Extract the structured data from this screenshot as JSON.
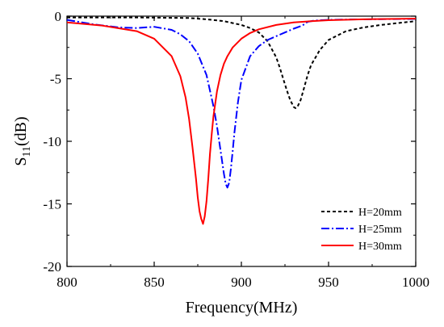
{
  "chart_data": {
    "type": "line",
    "xlabel": "Frequency(MHz)",
    "ylabel_main": "S",
    "ylabel_sub": "11",
    "ylabel_unit": "(dB)",
    "xlim": [
      800,
      1000
    ],
    "ylim": [
      -20,
      0
    ],
    "xticks": [
      800,
      850,
      900,
      950,
      1000
    ],
    "xtick_labels": [
      "800",
      "850",
      "900",
      "950",
      "1000"
    ],
    "yticks": [
      0,
      -5,
      -10,
      -15,
      -20
    ],
    "ytick_labels": [
      "0",
      "-5",
      "-10",
      "-15",
      "-20"
    ],
    "grid": false,
    "legend_position": "bottom-right",
    "series": [
      {
        "name": "H=20mm",
        "color": "#000000",
        "dash": "4,3",
        "x": [
          800,
          840,
          870,
          880,
          890,
          900,
          905,
          910,
          915,
          920,
          922,
          924,
          926,
          928,
          930,
          931,
          932,
          934,
          936,
          938,
          940,
          945,
          950,
          960,
          970,
          980,
          990,
          1000
        ],
        "y": [
          -0.1,
          -0.1,
          -0.15,
          -0.25,
          -0.4,
          -0.7,
          -0.95,
          -1.3,
          -2.0,
          -3.3,
          -4.1,
          -5.0,
          -5.9,
          -6.7,
          -7.25,
          -7.35,
          -7.3,
          -6.7,
          -5.7,
          -4.7,
          -3.9,
          -2.7,
          -1.9,
          -1.2,
          -0.9,
          -0.7,
          -0.55,
          -0.4
        ]
      },
      {
        "name": "H=25mm",
        "color": "#0000ff",
        "dash": "10,3,2,3",
        "x": [
          800,
          815,
          830,
          840,
          850,
          860,
          865,
          870,
          875,
          880,
          884,
          886,
          888,
          890,
          891,
          892,
          893,
          894,
          895,
          896,
          898,
          900,
          905,
          910,
          915,
          920,
          925,
          930,
          935,
          938,
          942,
          950,
          960,
          980,
          1000
        ],
        "y": [
          -0.3,
          -0.65,
          -0.9,
          -0.95,
          -0.85,
          -1.1,
          -1.45,
          -2.0,
          -3.0,
          -4.7,
          -7.2,
          -8.8,
          -10.7,
          -12.6,
          -13.4,
          -13.7,
          -13.3,
          -12.2,
          -10.8,
          -9.3,
          -6.9,
          -5.1,
          -3.2,
          -2.4,
          -1.9,
          -1.6,
          -1.3,
          -1.0,
          -0.75,
          -0.45,
          -0.35,
          -0.3,
          -0.27,
          -0.24,
          -0.22
        ]
      },
      {
        "name": "H=30mm",
        "color": "#ff0000",
        "dash": "",
        "x": [
          800,
          820,
          840,
          850,
          860,
          865,
          868,
          870,
          872,
          874,
          875,
          876,
          877,
          878,
          879,
          880,
          881,
          882,
          883,
          884,
          886,
          888,
          890,
          892,
          895,
          900,
          905,
          910,
          920,
          930,
          940,
          950,
          970,
          1000
        ],
        "y": [
          -0.5,
          -0.75,
          -1.2,
          -1.8,
          -3.2,
          -4.8,
          -6.5,
          -8.2,
          -10.5,
          -13.0,
          -14.5,
          -15.6,
          -16.2,
          -16.6,
          -16.0,
          -14.8,
          -13.0,
          -11.0,
          -9.4,
          -8.0,
          -6.0,
          -4.7,
          -3.8,
          -3.2,
          -2.5,
          -1.8,
          -1.35,
          -1.05,
          -0.7,
          -0.5,
          -0.4,
          -0.32,
          -0.25,
          -0.2
        ]
      }
    ]
  }
}
